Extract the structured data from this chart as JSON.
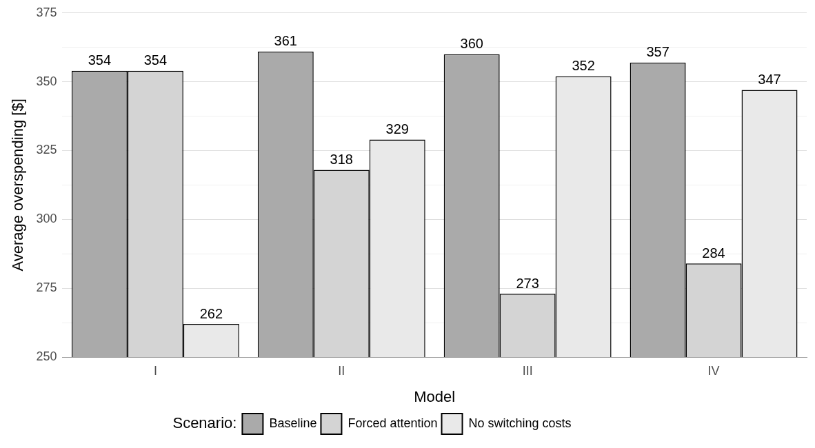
{
  "chart_data": {
    "type": "bar",
    "xlabel": "Model",
    "ylabel": "Average overspending [$]",
    "legend_title": "Scenario:",
    "categories": [
      "I",
      "II",
      "III",
      "IV"
    ],
    "series": [
      {
        "name": "Baseline",
        "color": "#aaaaaa",
        "values": [
          354,
          361,
          360,
          357
        ]
      },
      {
        "name": "Forced attention",
        "color": "#d4d4d4",
        "values": [
          354,
          318,
          273,
          284
        ]
      },
      {
        "name": "No switching costs",
        "color": "#e9e9e9",
        "values": [
          262,
          329,
          352,
          347
        ]
      }
    ],
    "ylim": [
      250,
      375
    ],
    "yticks": [
      250,
      {
        "value": 262.5,
        "label": null
      },
      275,
      {
        "value": 287.5,
        "label": null
      },
      300,
      {
        "value": 312.5,
        "label": null
      },
      325,
      {
        "value": 337.5,
        "label": null
      },
      350,
      {
        "value": 362.5,
        "label": null
      },
      375
    ],
    "grid": "y",
    "legend": "bottom",
    "data_labels": true
  }
}
